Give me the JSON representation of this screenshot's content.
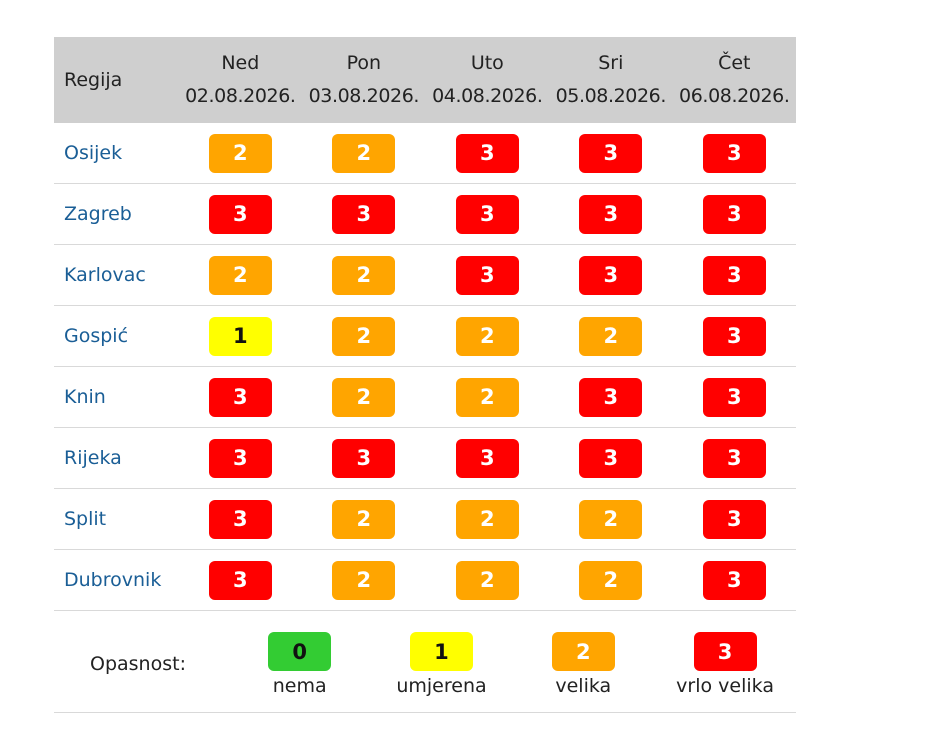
{
  "table": {
    "region_header": "Regija",
    "days": [
      {
        "day": "Ned",
        "date": "02.08.2026."
      },
      {
        "day": "Pon",
        "date": "03.08.2026."
      },
      {
        "day": "Uto",
        "date": "04.08.2026."
      },
      {
        "day": "Sri",
        "date": "05.08.2026."
      },
      {
        "day": "Čet",
        "date": "06.08.2026."
      }
    ],
    "rows": [
      {
        "region": "Osijek",
        "levels": [
          "2",
          "2",
          "3",
          "3",
          "3"
        ]
      },
      {
        "region": "Zagreb",
        "levels": [
          "3",
          "3",
          "3",
          "3",
          "3"
        ]
      },
      {
        "region": "Karlovac",
        "levels": [
          "2",
          "2",
          "3",
          "3",
          "3"
        ]
      },
      {
        "region": "Gospić",
        "levels": [
          "1",
          "2",
          "2",
          "2",
          "3"
        ]
      },
      {
        "region": "Knin",
        "levels": [
          "3",
          "2",
          "2",
          "3",
          "3"
        ]
      },
      {
        "region": "Rijeka",
        "levels": [
          "3",
          "3",
          "3",
          "3",
          "3"
        ]
      },
      {
        "region": "Split",
        "levels": [
          "3",
          "2",
          "2",
          "2",
          "3"
        ]
      },
      {
        "region": "Dubrovnik",
        "levels": [
          "3",
          "2",
          "2",
          "2",
          "3"
        ]
      }
    ]
  },
  "legend": {
    "label": "Opasnost:",
    "items": [
      {
        "level": "0",
        "text": "nema"
      },
      {
        "level": "1",
        "text": "umjerena"
      },
      {
        "level": "2",
        "text": "velika"
      },
      {
        "level": "3",
        "text": "vrlo velika"
      }
    ]
  },
  "colors": {
    "level_0": "#33cc33",
    "level_1": "#ffff00",
    "level_2": "#ffa500",
    "level_3": "#ff0000",
    "header_bg": "#cfcfcf",
    "region_link": "#1a5e96"
  }
}
